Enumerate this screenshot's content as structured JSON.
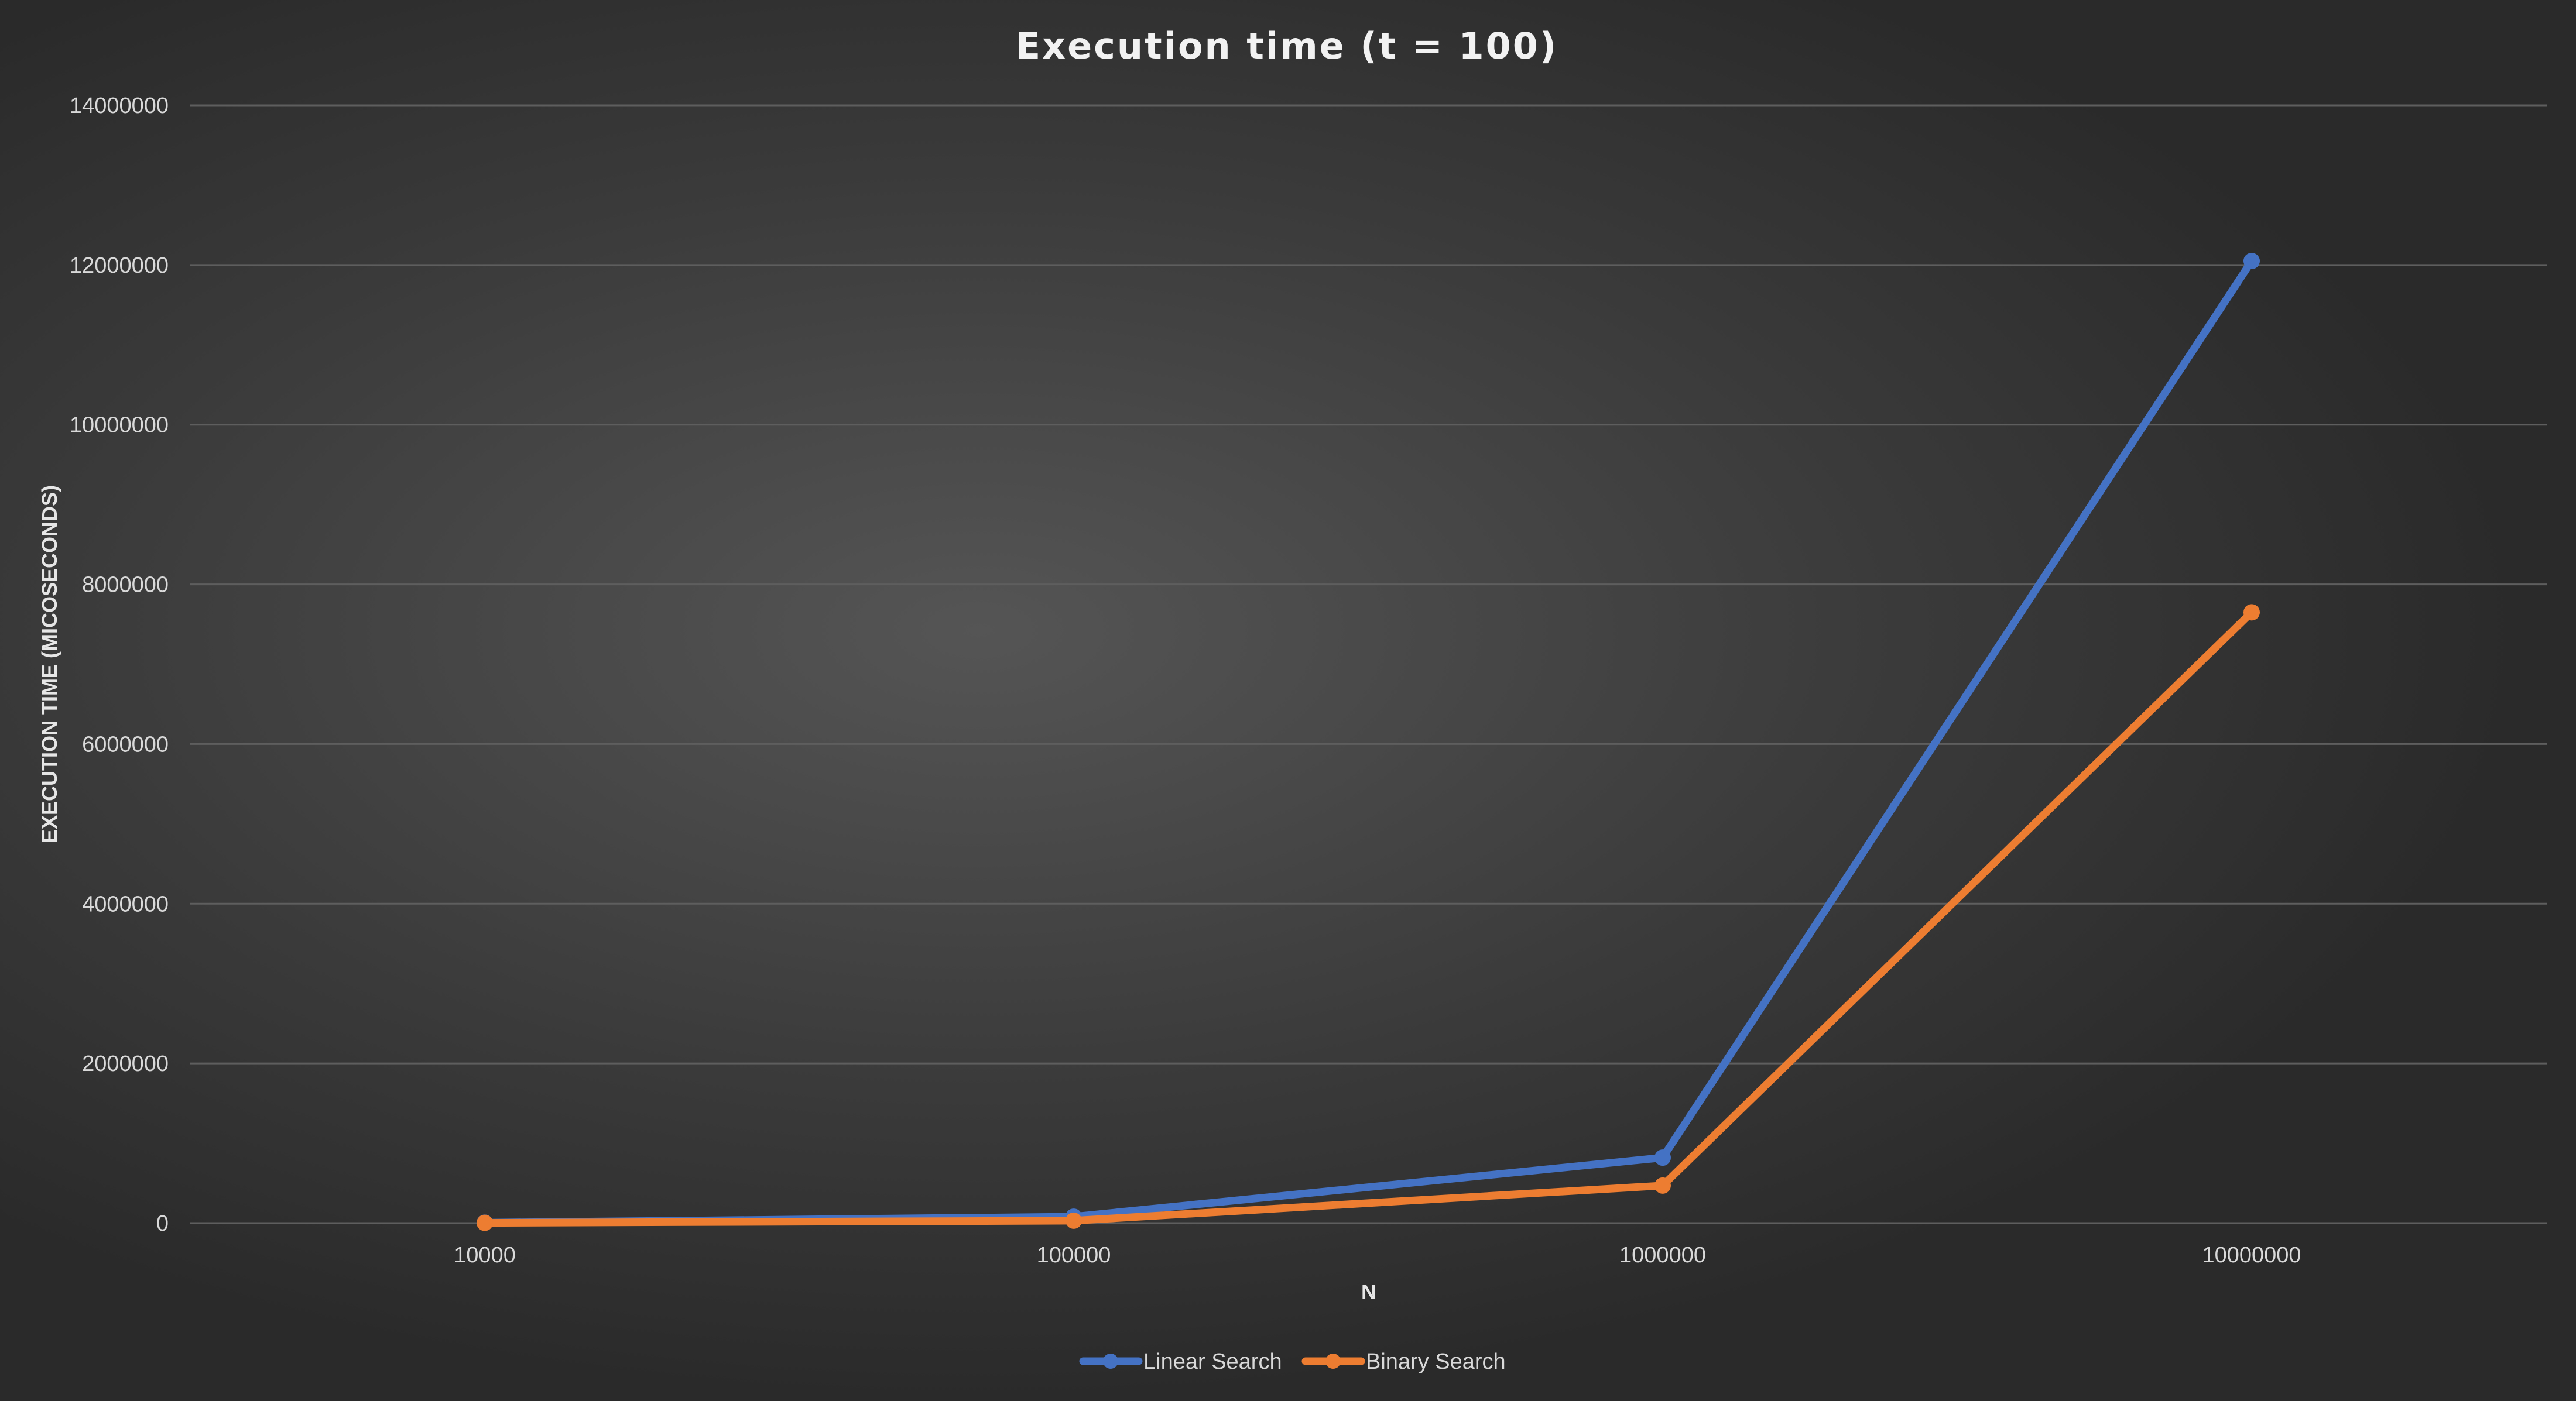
{
  "chart_data": {
    "type": "line",
    "title": "Execution time (t = 100)",
    "xlabel": "N",
    "ylabel": "EXECUTION TIME (MICOSECONDS)",
    "categories": [
      "10000",
      "100000",
      "1000000",
      "10000000"
    ],
    "ylim": [
      0,
      14000000
    ],
    "yticks": [
      "0",
      "2000000",
      "4000000",
      "6000000",
      "8000000",
      "10000000",
      "12000000",
      "14000000"
    ],
    "grid": true,
    "legend_position": "bottom",
    "series": [
      {
        "name": "Linear Search",
        "color": "#4472c4",
        "values": [
          5000,
          80000,
          820000,
          12050000
        ]
      },
      {
        "name": "Binary Search",
        "color": "#ed7d31",
        "values": [
          3000,
          30000,
          470000,
          7650000
        ]
      }
    ]
  }
}
